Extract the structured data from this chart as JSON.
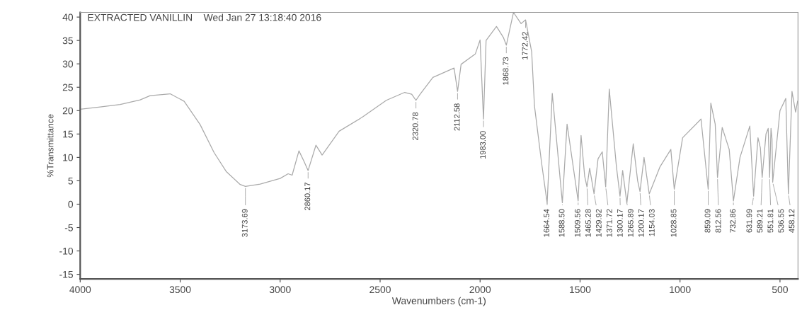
{
  "chart_data": {
    "type": "line",
    "title": "EXTRACTED VANILLIN    Wed Jan 27 13:18:40 2016",
    "xlabel": "Wavenumbers (cm-1)",
    "ylabel": "%Transmittance",
    "xlim": [
      4000,
      410
    ],
    "xticks": [
      4000,
      3500,
      3000,
      2500,
      2000,
      1500,
      1000,
      500
    ],
    "ylim": [
      -16,
      41
    ],
    "yticks": [
      -15,
      -10,
      -5,
      0,
      5,
      10,
      15,
      20,
      25,
      30,
      35,
      40
    ],
    "marker": "none",
    "line_style": "solid",
    "series": [
      {
        "color": "#aaaaaa",
        "x": [
          4000,
          3900,
          3800,
          3700,
          3650,
          3550,
          3480,
          3400,
          3330,
          3270,
          3200,
          3173.69,
          3100,
          3000,
          2960,
          2940,
          2906,
          2881,
          2860.17,
          2821,
          2790,
          2705,
          2589,
          2469,
          2377,
          2342,
          2320.78,
          2300,
          2236,
          2130,
          2112.58,
          2095,
          2024,
          2000,
          1983.0,
          1970,
          1918,
          1883,
          1868.73,
          1833,
          1795,
          1772.42,
          1742,
          1728,
          1692,
          1664.54,
          1639,
          1588.5,
          1565,
          1509.56,
          1495,
          1477,
          1465.28,
          1452,
          1429.92,
          1410,
          1389,
          1371.72,
          1354,
          1318,
          1300.17,
          1287,
          1265.89,
          1234,
          1212,
          1200.17,
          1180,
          1154.03,
          1100,
          1046,
          1028.85,
          987,
          895,
          859.09,
          846,
          824,
          812.56,
          789,
          754,
          732.86,
          700,
          651,
          631.99,
          610,
          598,
          589.21,
          570,
          559,
          551.81,
          545,
          540,
          536.55,
          500,
          471,
          458.12,
          440,
          422,
          412
        ],
        "values": [
          20.3,
          20.8,
          21.3,
          22.3,
          23.2,
          23.6,
          22,
          17,
          11,
          7,
          4.2,
          3.8,
          4.3,
          5.5,
          6.5,
          6.2,
          11.4,
          9.2,
          7.2,
          12.6,
          10.5,
          15.6,
          18.6,
          22.2,
          23.9,
          23.5,
          22.2,
          23.5,
          27.1,
          29.1,
          24.1,
          29.9,
          32.1,
          35.1,
          18.2,
          35,
          38,
          35.6,
          34,
          41,
          38.6,
          39.4,
          32.6,
          21,
          8.7,
          0.2,
          23.7,
          0.3,
          17.1,
          0.7,
          14.7,
          6,
          3.7,
          7.7,
          2.2,
          9.7,
          11.2,
          3.7,
          24.6,
          8,
          1.7,
          7.2,
          0.2,
          12.9,
          5,
          2.7,
          10,
          2.2,
          8,
          11.7,
          3.2,
          14.2,
          18.2,
          3.2,
          21.6,
          17.1,
          5.7,
          16.4,
          11.7,
          0.7,
          10,
          16.7,
          1.7,
          14.2,
          12,
          5.7,
          15,
          16.2,
          5.7,
          16.2,
          14,
          4.7,
          20,
          22.6,
          2.2,
          24.1,
          19.7,
          22
        ]
      }
    ],
    "annotations": [
      {
        "text": "3173.69",
        "x": 3173.69,
        "y": 3.8
      },
      {
        "text": "2860.17",
        "x": 2860.17,
        "y": 7.2
      },
      {
        "text": "2320.78",
        "x": 2320.78,
        "y": 22.2
      },
      {
        "text": "2112.58",
        "x": 2112.58,
        "y": 24.1
      },
      {
        "text": "1983.00",
        "x": 1983.0,
        "y": 18.2
      },
      {
        "text": "1868.73",
        "x": 1868.73,
        "y": 34
      },
      {
        "text": "1772.42",
        "x": 1772.42,
        "y": 39.4
      },
      {
        "text": "1664.54",
        "x": 1664.54,
        "y": 0.2
      },
      {
        "text": "1588.50",
        "x": 1588.5,
        "y": 0.3
      },
      {
        "text": "1509.56",
        "x": 1509.56,
        "y": 0.7
      },
      {
        "text": "1465.28",
        "x": 1465.28,
        "y": 3.7
      },
      {
        "text": "1429.92",
        "x": 1429.92,
        "y": 2.2
      },
      {
        "text": "1371.72",
        "x": 1371.72,
        "y": 3.7
      },
      {
        "text": "1300.17",
        "x": 1300.17,
        "y": 1.7
      },
      {
        "text": "1265.89",
        "x": 1265.89,
        "y": 0.2
      },
      {
        "text": "1200.17",
        "x": 1200.17,
        "y": 2.7
      },
      {
        "text": "1154.03",
        "x": 1154.03,
        "y": 2.2
      },
      {
        "text": "1028.85",
        "x": 1028.85,
        "y": 3.2
      },
      {
        "text": "859.09",
        "x": 859.09,
        "y": 3.2
      },
      {
        "text": "812.56",
        "x": 812.56,
        "y": 5.7
      },
      {
        "text": "732.86",
        "x": 732.86,
        "y": 0.7
      },
      {
        "text": "631.99",
        "x": 631.99,
        "y": 1.7
      },
      {
        "text": "589.21",
        "x": 589.21,
        "y": 5.7
      },
      {
        "text": "551.81",
        "x": 551.81,
        "y": 5.7
      },
      {
        "text": "536.55",
        "x": 536.55,
        "y": 4.7
      },
      {
        "text": "458.12",
        "x": 458.12,
        "y": 2.2
      }
    ]
  }
}
